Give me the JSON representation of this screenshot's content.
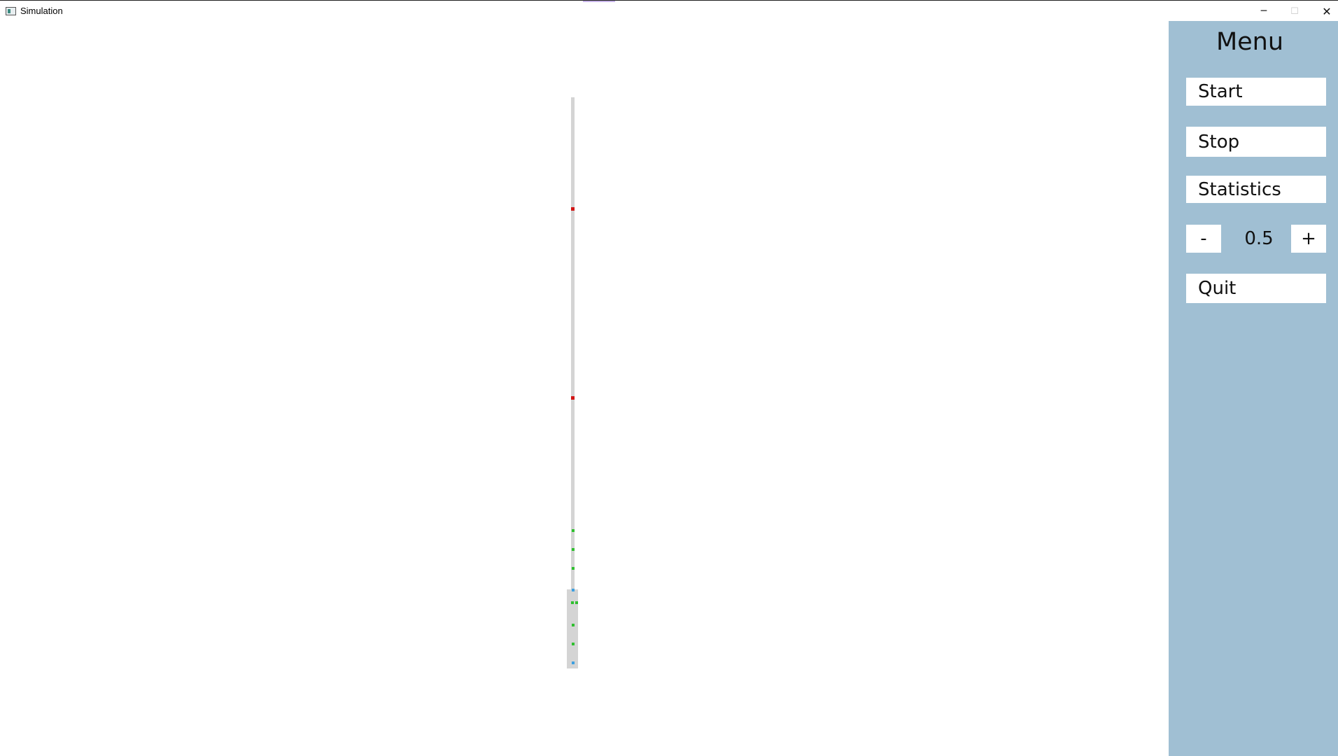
{
  "window": {
    "title": "Simulation",
    "minimize_glyph": "─",
    "maximize_glyph": "☐",
    "close_glyph": "✕"
  },
  "menu": {
    "title": "Menu",
    "start_label": "Start",
    "stop_label": "Stop",
    "statistics_label": "Statistics",
    "decrease_label": "-",
    "speed_value": "0.5",
    "increase_label": "+",
    "quit_label": "Quit"
  },
  "colors": {
    "menu_background": "#a0bfd3",
    "track": "#d4d4d4",
    "agent_red": "#d01515",
    "agent_green": "#2fbf2f",
    "agent_blue": "#3ea0e0"
  }
}
